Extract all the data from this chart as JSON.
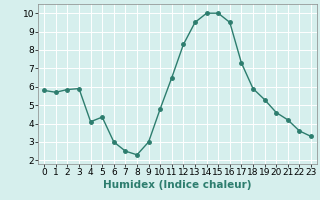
{
  "x": [
    0,
    1,
    2,
    3,
    4,
    5,
    6,
    7,
    8,
    9,
    10,
    11,
    12,
    13,
    14,
    15,
    16,
    17,
    18,
    19,
    20,
    21,
    22,
    23
  ],
  "y": [
    5.8,
    5.7,
    5.85,
    5.9,
    4.1,
    4.35,
    3.0,
    2.5,
    2.3,
    3.0,
    4.8,
    6.5,
    8.3,
    9.5,
    10.0,
    10.0,
    9.5,
    7.3,
    5.9,
    5.3,
    4.6,
    4.2,
    3.6,
    3.3
  ],
  "line_color": "#2d7d6e",
  "marker": "o",
  "markersize": 2.5,
  "linewidth": 1.0,
  "xlabel": "Humidex (Indice chaleur)",
  "xlabel_fontsize": 7.5,
  "xlabel_fontweight": "bold",
  "background_color": "#d6efed",
  "grid_color": "#ffffff",
  "ylim": [
    1.8,
    10.5
  ],
  "xlim": [
    -0.5,
    23.5
  ],
  "yticks": [
    2,
    3,
    4,
    5,
    6,
    7,
    8,
    9,
    10
  ],
  "xticks": [
    0,
    1,
    2,
    3,
    4,
    5,
    6,
    7,
    8,
    9,
    10,
    11,
    12,
    13,
    14,
    15,
    16,
    17,
    18,
    19,
    20,
    21,
    22,
    23
  ],
  "tick_fontsize": 6.5
}
